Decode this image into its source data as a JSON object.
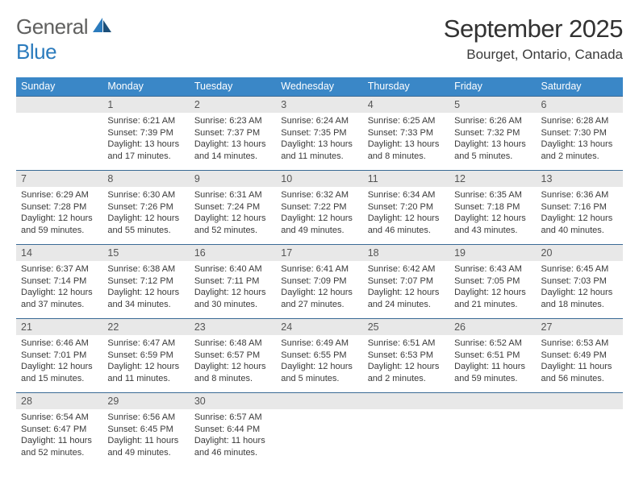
{
  "logo": {
    "word1": "General",
    "word2": "Blue"
  },
  "title": "September 2025",
  "location": "Bourget, Ontario, Canada",
  "colors": {
    "header_bg": "#3a87c7",
    "header_fg": "#ffffff",
    "daynum_bg": "#e8e8e8",
    "rule": "#3a6a95",
    "logo_gray": "#60605f",
    "logo_blue": "#2b7bbd"
  },
  "day_names": [
    "Sunday",
    "Monday",
    "Tuesday",
    "Wednesday",
    "Thursday",
    "Friday",
    "Saturday"
  ],
  "weeks": [
    {
      "nums": [
        "",
        "1",
        "2",
        "3",
        "4",
        "5",
        "6"
      ],
      "cells": [
        null,
        {
          "sunrise": "Sunrise: 6:21 AM",
          "sunset": "Sunset: 7:39 PM",
          "day1": "Daylight: 13 hours",
          "day2": "and 17 minutes."
        },
        {
          "sunrise": "Sunrise: 6:23 AM",
          "sunset": "Sunset: 7:37 PM",
          "day1": "Daylight: 13 hours",
          "day2": "and 14 minutes."
        },
        {
          "sunrise": "Sunrise: 6:24 AM",
          "sunset": "Sunset: 7:35 PM",
          "day1": "Daylight: 13 hours",
          "day2": "and 11 minutes."
        },
        {
          "sunrise": "Sunrise: 6:25 AM",
          "sunset": "Sunset: 7:33 PM",
          "day1": "Daylight: 13 hours",
          "day2": "and 8 minutes."
        },
        {
          "sunrise": "Sunrise: 6:26 AM",
          "sunset": "Sunset: 7:32 PM",
          "day1": "Daylight: 13 hours",
          "day2": "and 5 minutes."
        },
        {
          "sunrise": "Sunrise: 6:28 AM",
          "sunset": "Sunset: 7:30 PM",
          "day1": "Daylight: 13 hours",
          "day2": "and 2 minutes."
        }
      ]
    },
    {
      "nums": [
        "7",
        "8",
        "9",
        "10",
        "11",
        "12",
        "13"
      ],
      "cells": [
        {
          "sunrise": "Sunrise: 6:29 AM",
          "sunset": "Sunset: 7:28 PM",
          "day1": "Daylight: 12 hours",
          "day2": "and 59 minutes."
        },
        {
          "sunrise": "Sunrise: 6:30 AM",
          "sunset": "Sunset: 7:26 PM",
          "day1": "Daylight: 12 hours",
          "day2": "and 55 minutes."
        },
        {
          "sunrise": "Sunrise: 6:31 AM",
          "sunset": "Sunset: 7:24 PM",
          "day1": "Daylight: 12 hours",
          "day2": "and 52 minutes."
        },
        {
          "sunrise": "Sunrise: 6:32 AM",
          "sunset": "Sunset: 7:22 PM",
          "day1": "Daylight: 12 hours",
          "day2": "and 49 minutes."
        },
        {
          "sunrise": "Sunrise: 6:34 AM",
          "sunset": "Sunset: 7:20 PM",
          "day1": "Daylight: 12 hours",
          "day2": "and 46 minutes."
        },
        {
          "sunrise": "Sunrise: 6:35 AM",
          "sunset": "Sunset: 7:18 PM",
          "day1": "Daylight: 12 hours",
          "day2": "and 43 minutes."
        },
        {
          "sunrise": "Sunrise: 6:36 AM",
          "sunset": "Sunset: 7:16 PM",
          "day1": "Daylight: 12 hours",
          "day2": "and 40 minutes."
        }
      ]
    },
    {
      "nums": [
        "14",
        "15",
        "16",
        "17",
        "18",
        "19",
        "20"
      ],
      "cells": [
        {
          "sunrise": "Sunrise: 6:37 AM",
          "sunset": "Sunset: 7:14 PM",
          "day1": "Daylight: 12 hours",
          "day2": "and 37 minutes."
        },
        {
          "sunrise": "Sunrise: 6:38 AM",
          "sunset": "Sunset: 7:12 PM",
          "day1": "Daylight: 12 hours",
          "day2": "and 34 minutes."
        },
        {
          "sunrise": "Sunrise: 6:40 AM",
          "sunset": "Sunset: 7:11 PM",
          "day1": "Daylight: 12 hours",
          "day2": "and 30 minutes."
        },
        {
          "sunrise": "Sunrise: 6:41 AM",
          "sunset": "Sunset: 7:09 PM",
          "day1": "Daylight: 12 hours",
          "day2": "and 27 minutes."
        },
        {
          "sunrise": "Sunrise: 6:42 AM",
          "sunset": "Sunset: 7:07 PM",
          "day1": "Daylight: 12 hours",
          "day2": "and 24 minutes."
        },
        {
          "sunrise": "Sunrise: 6:43 AM",
          "sunset": "Sunset: 7:05 PM",
          "day1": "Daylight: 12 hours",
          "day2": "and 21 minutes."
        },
        {
          "sunrise": "Sunrise: 6:45 AM",
          "sunset": "Sunset: 7:03 PM",
          "day1": "Daylight: 12 hours",
          "day2": "and 18 minutes."
        }
      ]
    },
    {
      "nums": [
        "21",
        "22",
        "23",
        "24",
        "25",
        "26",
        "27"
      ],
      "cells": [
        {
          "sunrise": "Sunrise: 6:46 AM",
          "sunset": "Sunset: 7:01 PM",
          "day1": "Daylight: 12 hours",
          "day2": "and 15 minutes."
        },
        {
          "sunrise": "Sunrise: 6:47 AM",
          "sunset": "Sunset: 6:59 PM",
          "day1": "Daylight: 12 hours",
          "day2": "and 11 minutes."
        },
        {
          "sunrise": "Sunrise: 6:48 AM",
          "sunset": "Sunset: 6:57 PM",
          "day1": "Daylight: 12 hours",
          "day2": "and 8 minutes."
        },
        {
          "sunrise": "Sunrise: 6:49 AM",
          "sunset": "Sunset: 6:55 PM",
          "day1": "Daylight: 12 hours",
          "day2": "and 5 minutes."
        },
        {
          "sunrise": "Sunrise: 6:51 AM",
          "sunset": "Sunset: 6:53 PM",
          "day1": "Daylight: 12 hours",
          "day2": "and 2 minutes."
        },
        {
          "sunrise": "Sunrise: 6:52 AM",
          "sunset": "Sunset: 6:51 PM",
          "day1": "Daylight: 11 hours",
          "day2": "and 59 minutes."
        },
        {
          "sunrise": "Sunrise: 6:53 AM",
          "sunset": "Sunset: 6:49 PM",
          "day1": "Daylight: 11 hours",
          "day2": "and 56 minutes."
        }
      ]
    },
    {
      "nums": [
        "28",
        "29",
        "30",
        "",
        "",
        "",
        ""
      ],
      "cells": [
        {
          "sunrise": "Sunrise: 6:54 AM",
          "sunset": "Sunset: 6:47 PM",
          "day1": "Daylight: 11 hours",
          "day2": "and 52 minutes."
        },
        {
          "sunrise": "Sunrise: 6:56 AM",
          "sunset": "Sunset: 6:45 PM",
          "day1": "Daylight: 11 hours",
          "day2": "and 49 minutes."
        },
        {
          "sunrise": "Sunrise: 6:57 AM",
          "sunset": "Sunset: 6:44 PM",
          "day1": "Daylight: 11 hours",
          "day2": "and 46 minutes."
        },
        null,
        null,
        null,
        null
      ]
    }
  ]
}
